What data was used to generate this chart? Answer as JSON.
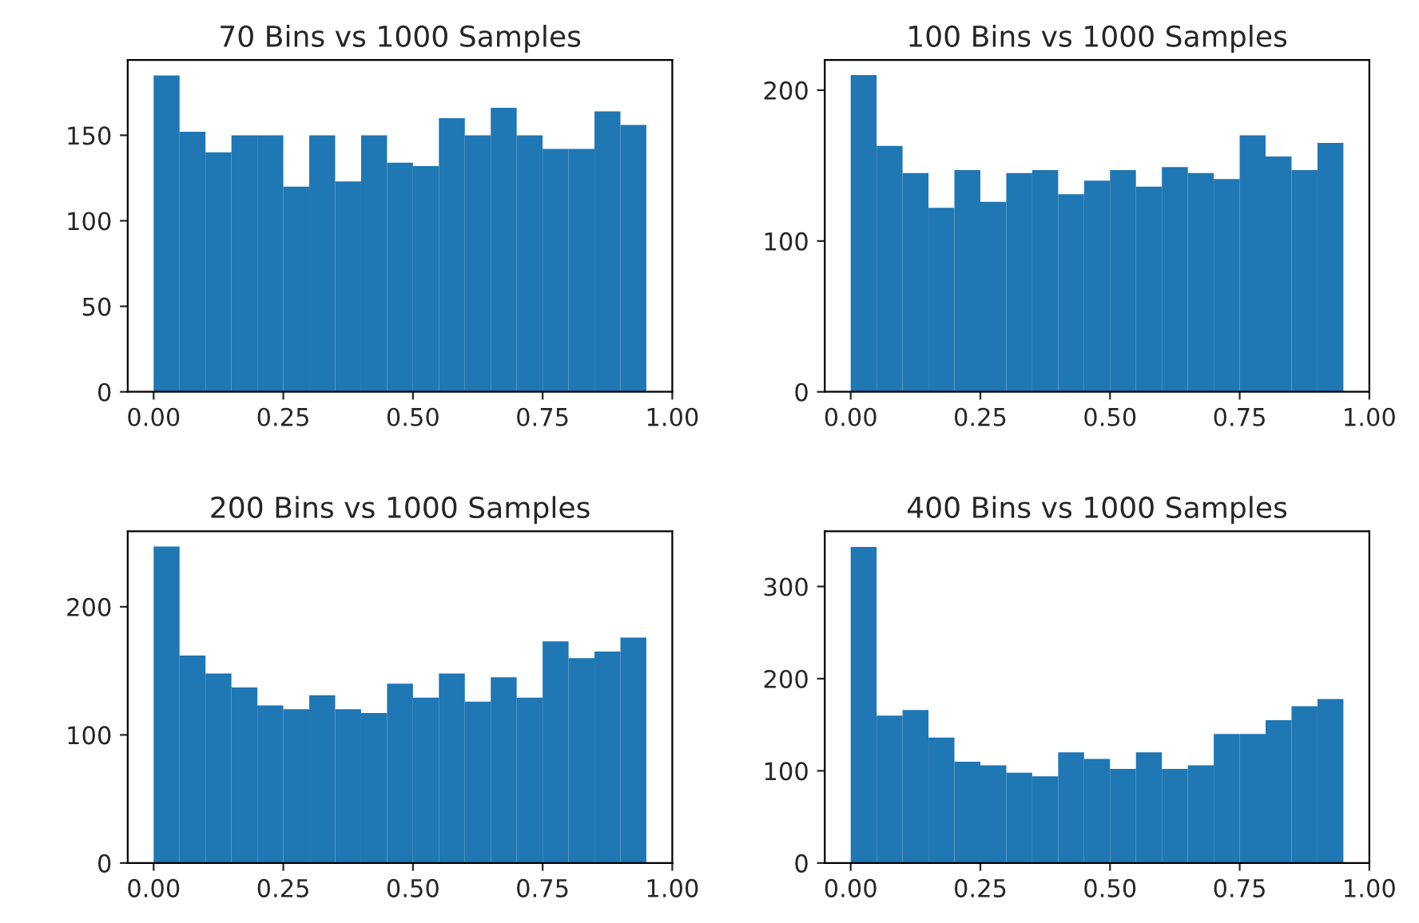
{
  "chart_data": [
    {
      "type": "histogram",
      "title": "70 Bins vs 1000 Samples",
      "bins": [
        0,
        0.05,
        0.1,
        0.15,
        0.2,
        0.25,
        0.3,
        0.35,
        0.4,
        0.45,
        0.5,
        0.55,
        0.6,
        0.65,
        0.7,
        0.75,
        0.8,
        0.85,
        0.9,
        0.95
      ],
      "values": [
        185,
        152,
        140,
        150,
        150,
        120,
        150,
        123,
        150,
        134,
        132,
        160,
        150,
        166,
        150,
        142,
        142,
        164,
        156
      ],
      "color": "#1f77b4",
      "xlim": [
        -0.05,
        1.0
      ],
      "xticks": [
        {
          "value": 0,
          "label": "0.00"
        },
        {
          "value": 0.25,
          "label": "0.25"
        },
        {
          "value": 0.5,
          "label": "0.50"
        },
        {
          "value": 0.75,
          "label": "0.75"
        },
        {
          "value": 1,
          "label": "1.00"
        }
      ],
      "ylim": [
        0,
        194
      ],
      "yticks": [
        0,
        50,
        100,
        150
      ]
    },
    {
      "type": "histogram",
      "title": "100 Bins vs 1000 Samples",
      "bins": [
        0,
        0.05,
        0.1,
        0.15,
        0.2,
        0.25,
        0.3,
        0.35,
        0.4,
        0.45,
        0.5,
        0.55,
        0.6,
        0.65,
        0.7,
        0.75,
        0.8,
        0.85,
        0.9,
        0.95
      ],
      "values": [
        210,
        163,
        145,
        122,
        147,
        126,
        145,
        147,
        131,
        140,
        147,
        136,
        149,
        145,
        141,
        170,
        156,
        147,
        165
      ],
      "color": "#1f77b4",
      "xlim": [
        -0.05,
        1.0
      ],
      "xticks": [
        {
          "value": 0,
          "label": "0.00"
        },
        {
          "value": 0.25,
          "label": "0.25"
        },
        {
          "value": 0.5,
          "label": "0.50"
        },
        {
          "value": 0.75,
          "label": "0.75"
        },
        {
          "value": 1,
          "label": "1.00"
        }
      ],
      "ylim": [
        0,
        220
      ],
      "yticks": [
        0,
        100,
        200
      ]
    },
    {
      "type": "histogram",
      "title": "200 Bins vs 1000 Samples",
      "bins": [
        0,
        0.05,
        0.1,
        0.15,
        0.2,
        0.25,
        0.3,
        0.35,
        0.4,
        0.45,
        0.5,
        0.55,
        0.6,
        0.65,
        0.7,
        0.75,
        0.8,
        0.85,
        0.9,
        0.95
      ],
      "values": [
        247,
        162,
        148,
        137,
        123,
        120,
        131,
        120,
        117,
        140,
        129,
        148,
        126,
        145,
        129,
        173,
        160,
        165,
        176
      ],
      "color": "#1f77b4",
      "xlim": [
        -0.05,
        1.0
      ],
      "xticks": [
        {
          "value": 0,
          "label": "0.00"
        },
        {
          "value": 0.25,
          "label": "0.25"
        },
        {
          "value": 0.5,
          "label": "0.50"
        },
        {
          "value": 0.75,
          "label": "0.75"
        },
        {
          "value": 1,
          "label": "1.00"
        }
      ],
      "ylim": [
        0,
        259
      ],
      "yticks": [
        0,
        100,
        200
      ]
    },
    {
      "type": "histogram",
      "title": "400 Bins vs 1000 Samples",
      "bins": [
        0,
        0.05,
        0.1,
        0.15,
        0.2,
        0.25,
        0.3,
        0.35,
        0.4,
        0.45,
        0.5,
        0.55,
        0.6,
        0.65,
        0.7,
        0.75,
        0.8,
        0.85,
        0.9,
        0.95
      ],
      "values": [
        343,
        160,
        166,
        136,
        110,
        106,
        98,
        94,
        120,
        113,
        102,
        120,
        102,
        106,
        140,
        140,
        155,
        170,
        178
      ],
      "color": "#1f77b4",
      "xlim": [
        -0.05,
        1.0
      ],
      "xticks": [
        {
          "value": 0,
          "label": "0.00"
        },
        {
          "value": 0.25,
          "label": "0.25"
        },
        {
          "value": 0.5,
          "label": "0.50"
        },
        {
          "value": 0.75,
          "label": "0.75"
        },
        {
          "value": 1,
          "label": "1.00"
        }
      ],
      "ylim": [
        0,
        360
      ],
      "yticks": [
        0,
        100,
        200,
        300
      ]
    }
  ]
}
